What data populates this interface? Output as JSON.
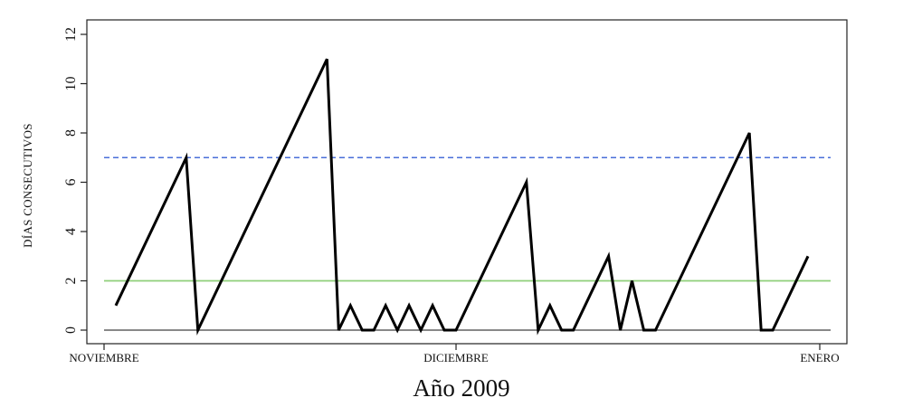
{
  "chart_data": {
    "type": "line",
    "xlabel": "Año 2009",
    "ylabel": "DÍAS CONSECUTIVOS",
    "ylim": [
      0,
      12
    ],
    "yticks": [
      "0",
      "2",
      "4",
      "6",
      "8",
      "10",
      "12"
    ],
    "x_range": [
      "2009-11-01",
      "2010-01-01"
    ],
    "x_ticks": [
      {
        "date": "2009-11-01",
        "label": "NOVIEMBRE"
      },
      {
        "date": "2009-12-01",
        "label": "DICIEMBRE"
      },
      {
        "date": "2010-01-01",
        "label": "ENERO"
      }
    ],
    "grid": false,
    "series": [
      {
        "color": "#000000",
        "x": [
          "2009-11-02",
          "2009-11-08",
          "2009-11-09",
          "2009-11-20",
          "2009-11-21",
          "2009-11-22",
          "2009-11-23",
          "2009-11-24",
          "2009-11-25",
          "2009-11-26",
          "2009-11-27",
          "2009-11-28",
          "2009-11-29",
          "2009-11-30",
          "2009-12-01",
          "2009-12-07",
          "2009-12-08",
          "2009-12-09",
          "2009-12-10",
          "2009-12-11",
          "2009-12-14",
          "2009-12-15",
          "2009-12-16",
          "2009-12-17",
          "2009-12-18",
          "2009-12-26",
          "2009-12-27",
          "2009-12-28",
          "2009-12-31"
        ],
        "y": [
          1,
          7,
          0,
          11,
          0,
          1,
          0,
          0,
          1,
          0,
          1,
          0,
          1,
          0,
          0,
          6,
          0,
          1,
          0,
          0,
          3,
          0,
          2,
          0,
          0,
          8,
          0,
          0,
          3
        ]
      }
    ],
    "reference_lines": [
      {
        "y": 7,
        "color": "#4a6fd8",
        "style": "dashed"
      },
      {
        "y": 2,
        "color": "#8fcf7a",
        "style": "solid"
      },
      {
        "y": 0,
        "color": "#777777",
        "style": "solid"
      }
    ]
  }
}
